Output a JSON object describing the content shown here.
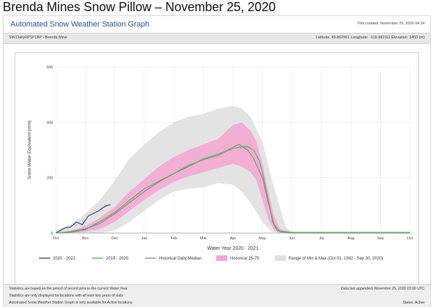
{
  "headline": "Brenda Mines Snow Pillow – November 25, 2020",
  "app_title": "Automated Snow Weather Station Graph",
  "plot_created": "Plot created: November 25, 2020 04:14",
  "station": {
    "id": "SW.DailyRP1P1BP · Brenda Mine",
    "location": "Latitude: 49.862961 Longitude: -119.982111 Elevation: 1460 (m)"
  },
  "footer": {
    "note1": "Statistics are based on the period of record prior to the current Water Year",
    "note2": "Statistics are only displayed for locations with at least two years of data",
    "note3": "Automated Snow Weather Station Graph is only available for Active locations",
    "last_appended": "Data last appended: November 25, 2020 03:00 UTC",
    "status": "Status: Active"
  },
  "colors": {
    "current": "#1f2f8c",
    "prev": "#4caf50",
    "median": "#888888",
    "band25_75": "#f4a6cf",
    "minmax": "#e0e0e0"
  },
  "chart_data": {
    "type": "line",
    "title": "",
    "xlabel": "Water Year 2020 - 2021",
    "ylabel": "Snow Water Equivalent (mm)",
    "ylim": [
      0,
      600
    ],
    "yticks": [
      0,
      200,
      400,
      600
    ],
    "months": [
      "Oct",
      "Nov",
      "Dec",
      "Jan",
      "Feb",
      "Mar",
      "Apr",
      "May",
      "Jun",
      "Jul",
      "Aug",
      "Sep",
      "Oct"
    ],
    "grid": true,
    "legend_position": "bottom",
    "series": [
      {
        "key": "minmax",
        "name": "Range of Min & Max (Oct 01, 1992 - Sep 30, 2020)",
        "kind": "band",
        "x": [
          0,
          0.5,
          1,
          1.5,
          2,
          2.5,
          3,
          3.5,
          4,
          4.5,
          5,
          5.5,
          6,
          6.3,
          6.6,
          7,
          7.3,
          7.6,
          7.8,
          8,
          12
        ],
        "upper": [
          10,
          30,
          70,
          120,
          190,
          270,
          320,
          365,
          400,
          420,
          430,
          450,
          460,
          450,
          420,
          330,
          200,
          90,
          20,
          5,
          5
        ],
        "lower": [
          0,
          0,
          0,
          0,
          10,
          40,
          80,
          120,
          150,
          160,
          165,
          180,
          175,
          150,
          110,
          40,
          5,
          0,
          0,
          0,
          0
        ]
      },
      {
        "key": "band25_75",
        "name": "Historical 25-75",
        "kind": "band",
        "x": [
          0,
          0.5,
          1,
          1.5,
          2,
          2.5,
          3,
          3.5,
          4,
          4.5,
          5,
          5.5,
          6,
          6.3,
          6.6,
          6.8,
          7,
          7.2,
          7.4,
          7.6,
          8,
          12
        ],
        "upper": [
          0,
          8,
          25,
          55,
          95,
          150,
          195,
          240,
          275,
          300,
          320,
          340,
          390,
          400,
          370,
          330,
          250,
          150,
          60,
          15,
          2,
          2
        ],
        "lower": [
          0,
          0,
          5,
          15,
          40,
          80,
          120,
          155,
          185,
          205,
          220,
          235,
          250,
          240,
          220,
          190,
          120,
          50,
          10,
          0,
          0,
          0
        ]
      },
      {
        "key": "median",
        "name": "Historical Daily Median",
        "kind": "line",
        "x": [
          0,
          0.5,
          1,
          1.5,
          2,
          2.5,
          3,
          3.5,
          4,
          4.5,
          5,
          5.5,
          6,
          6.2,
          6.5,
          6.7,
          7,
          7.2,
          7.4,
          7.6,
          8,
          12
        ],
        "y": [
          0,
          5,
          15,
          35,
          70,
          110,
          150,
          185,
          215,
          245,
          265,
          280,
          310,
          320,
          300,
          270,
          200,
          110,
          30,
          5,
          0,
          0
        ]
      },
      {
        "key": "prev",
        "name": "2019 - 2020",
        "kind": "line",
        "x": [
          0,
          0.5,
          1,
          1.3,
          1.6,
          2,
          2.5,
          3,
          3.5,
          4,
          4.5,
          5,
          5.5,
          6,
          6.2,
          6.5,
          6.7,
          6.9,
          7,
          7.2,
          7.35,
          7.5,
          8,
          12
        ],
        "y": [
          0,
          3,
          12,
          30,
          48,
          75,
          118,
          160,
          188,
          215,
          240,
          268,
          285,
          305,
          310,
          312,
          300,
          260,
          220,
          120,
          40,
          8,
          2,
          2
        ]
      },
      {
        "key": "current",
        "name": "2020 - 2021",
        "kind": "line",
        "x": [
          0,
          0.3,
          0.5,
          0.7,
          0.9,
          1.1,
          1.3,
          1.45,
          1.6,
          1.75,
          1.85
        ],
        "y": [
          0,
          18,
          22,
          40,
          30,
          62,
          72,
          80,
          92,
          100,
          102
        ]
      }
    ]
  }
}
